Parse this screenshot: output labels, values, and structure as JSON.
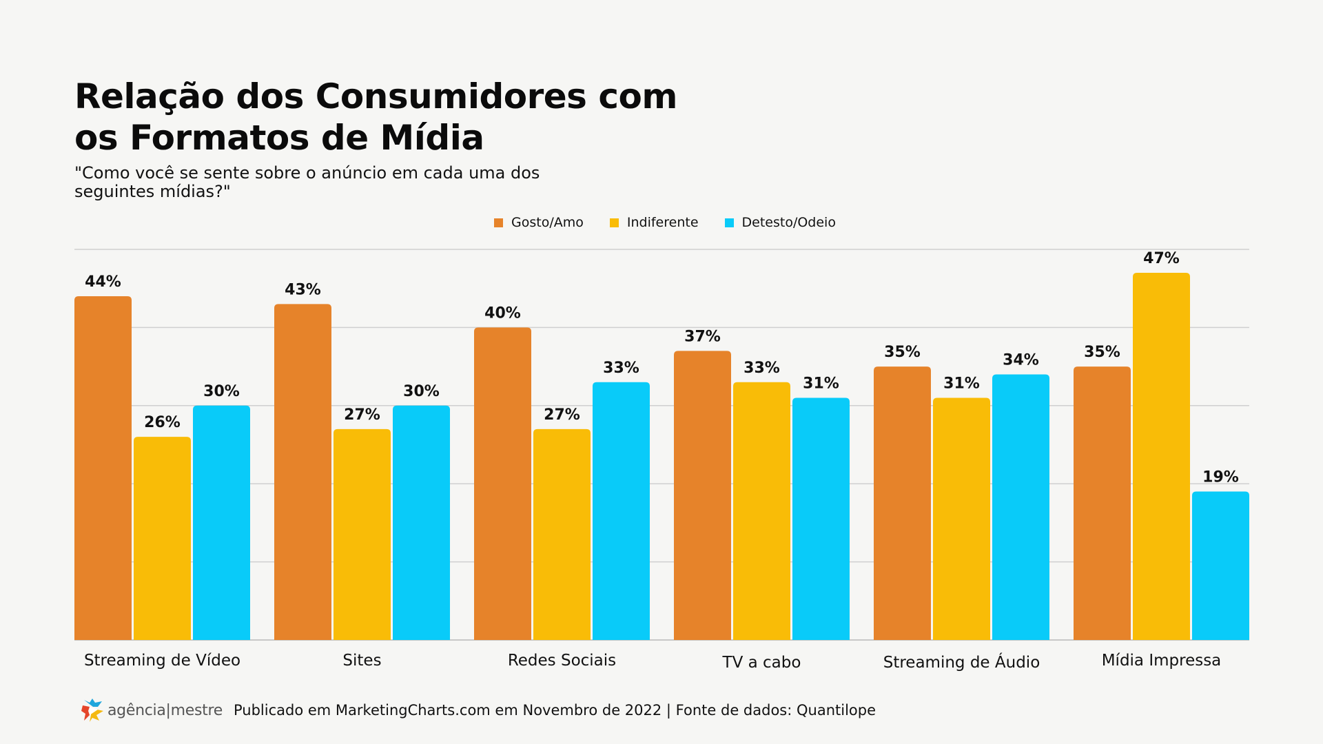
{
  "title_lines": [
    "Relação dos Consumidores com",
    "os Formatos de Mídia"
  ],
  "subtitle_lines": [
    "\"Como você se sente sobre o anúncio em cada uma dos",
    "seguintes mídias?\""
  ],
  "colors": {
    "Gosto/Amo": "#e6832a",
    "Indiferente": "#f9bc07",
    "Detesto/Odeio": "#09cbf9",
    "background": "#f6f6f4",
    "gridline": "#cfcfcf"
  },
  "footer": {
    "logo_text_left": "agência",
    "logo_separator": "|",
    "logo_text_right": "mestre",
    "source": "Publicado em MarketingCharts.com em Novembro de 2022 | Fonte de dados: Quantilope"
  },
  "chart_data": {
    "type": "bar",
    "title": "Relação dos Consumidores com os Formatos de Mídia",
    "subtitle": "\"Como você se sente sobre o anúncio em cada uma dos seguintes mídias?\"",
    "xlabel": "",
    "ylabel": "",
    "ylim": [
      0,
      50
    ],
    "grid": true,
    "gridline_step": 10,
    "legend_position": "top-center",
    "value_suffix": "%",
    "categories": [
      "Streaming de Vídeo",
      "Sites",
      "Redes Sociais",
      "TV a cabo",
      "Streaming de Áudio",
      "Mídia Impressa"
    ],
    "series": [
      {
        "name": "Gosto/Amo",
        "values": [
          44,
          43,
          40,
          37,
          35,
          35
        ]
      },
      {
        "name": "Indiferente",
        "values": [
          26,
          27,
          27,
          33,
          31,
          47
        ]
      },
      {
        "name": "Detesto/Odeio",
        "values": [
          30,
          30,
          33,
          31,
          34,
          19
        ]
      }
    ]
  }
}
